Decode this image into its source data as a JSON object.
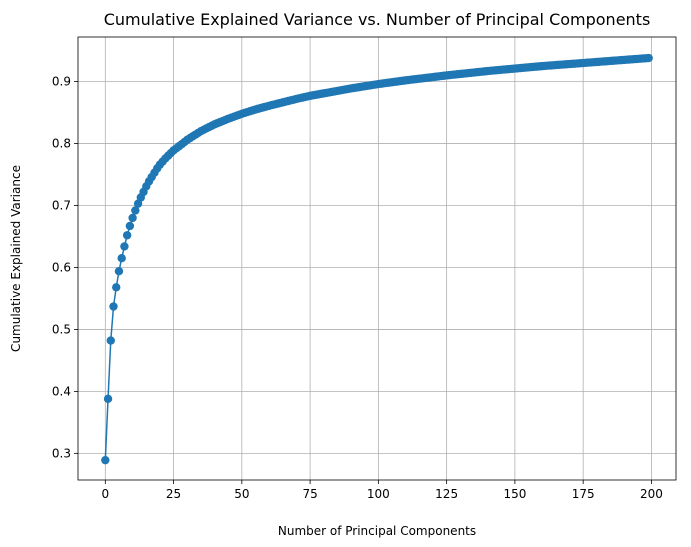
{
  "chart_data": {
    "type": "line",
    "title": "Cumulative Explained Variance vs. Number of Principal Components",
    "xlabel": "Number of Principal Components",
    "ylabel": "Cumulative Explained Variance",
    "xlim": [
      -10,
      209
    ],
    "ylim": [
      0.257,
      0.972
    ],
    "xticks": [
      0,
      25,
      50,
      75,
      100,
      125,
      150,
      175,
      200
    ],
    "yticks": [
      0.3,
      0.4,
      0.5,
      0.6,
      0.7,
      0.8,
      0.9
    ],
    "grid": true,
    "marker": "circle",
    "series_color": "#1f77b4",
    "anchors": {
      "x": [
        0,
        1,
        2,
        3,
        4,
        5,
        6,
        7,
        8,
        9,
        10,
        11,
        12,
        13,
        14,
        15,
        16,
        17,
        18,
        19,
        20,
        22,
        25,
        28,
        30,
        35,
        40,
        45,
        50,
        55,
        60,
        70,
        75,
        80,
        90,
        100,
        110,
        125,
        140,
        150,
        160,
        175,
        190,
        199
      ],
      "y": [
        0.289,
        0.388,
        0.482,
        0.537,
        0.568,
        0.594,
        0.615,
        0.634,
        0.652,
        0.667,
        0.68,
        0.692,
        0.703,
        0.713,
        0.722,
        0.731,
        0.739,
        0.746,
        0.753,
        0.76,
        0.766,
        0.776,
        0.789,
        0.799,
        0.806,
        0.82,
        0.831,
        0.84,
        0.848,
        0.855,
        0.861,
        0.872,
        0.877,
        0.881,
        0.889,
        0.896,
        0.902,
        0.91,
        0.917,
        0.921,
        0.925,
        0.93,
        0.935,
        0.938
      ]
    }
  }
}
